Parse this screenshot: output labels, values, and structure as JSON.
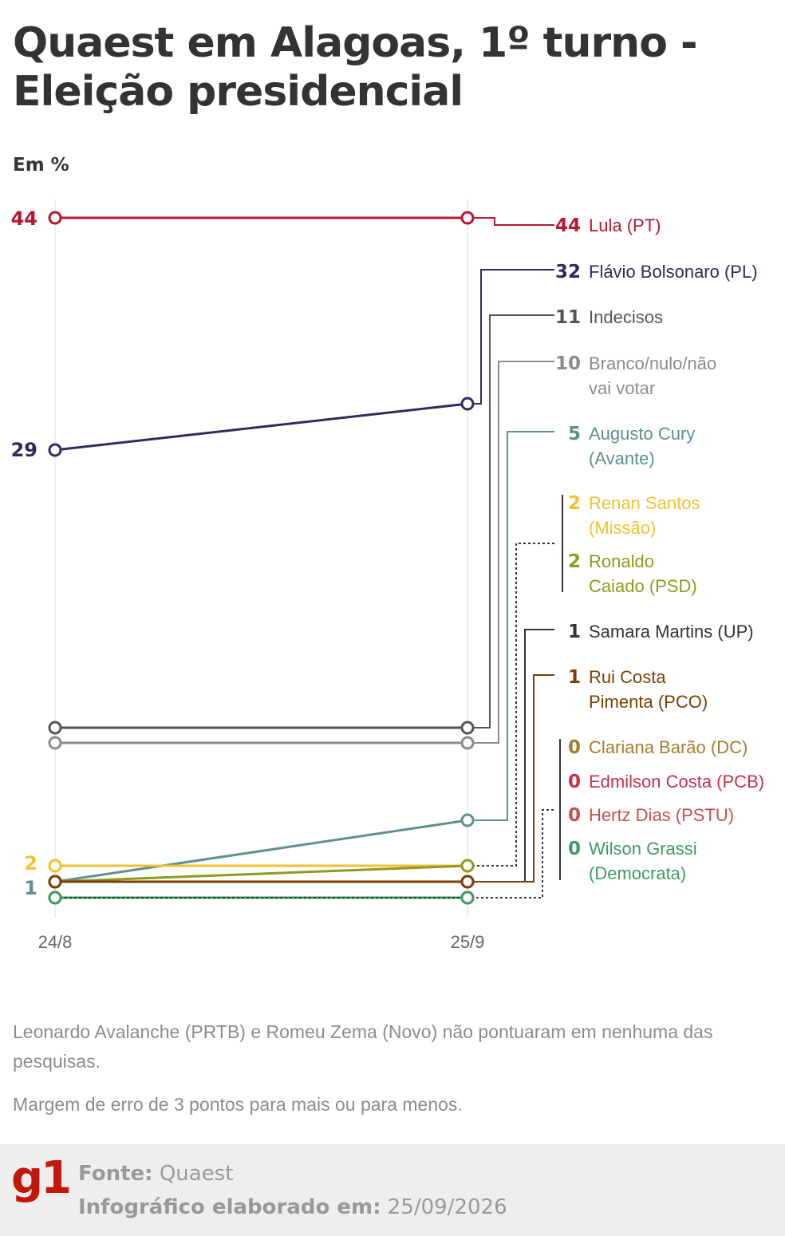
{
  "title": "Quaest em Alagoas, 1º turno - Eleição presidencial",
  "unit_label": "Em %",
  "chart_data": {
    "type": "line",
    "x": [
      "24/8",
      "25/9"
    ],
    "ylim": [
      0,
      46
    ],
    "grid": "vertical lines at each survey date",
    "series": [
      {
        "name": "Lula (PT)",
        "label": [
          "Lula (PT)"
        ],
        "values": [
          44,
          44
        ],
        "color": "#b5172f",
        "end_value": "44",
        "start_value_label": "44"
      },
      {
        "name": "Flávio Bolsonaro (PL)",
        "label": [
          "Flávio Bolsonaro (PL)"
        ],
        "values": [
          29,
          32
        ],
        "color": "#2c2c5e",
        "end_value": "32",
        "start_value_label": "29"
      },
      {
        "name": "Indecisos",
        "label": [
          "Indecisos"
        ],
        "values": [
          11,
          11
        ],
        "color": "#555555",
        "end_value": "11",
        "start_value_label": ""
      },
      {
        "name": "Branco/nulo/não vai votar",
        "label": [
          "Branco/nulo/não",
          "vai votar"
        ],
        "values": [
          10,
          10
        ],
        "color": "#8c8c8c",
        "end_value": "10",
        "start_value_label": ""
      },
      {
        "name": "Augusto Cury (Avante)",
        "label": [
          "Augusto Cury",
          "(Avante)"
        ],
        "values": [
          1,
          5
        ],
        "color": "#5f8f8f",
        "end_value": "5",
        "start_value_label": "1"
      },
      {
        "name": "Renan Santos (Missão)",
        "label": [
          "Renan Santos",
          "(Missão)"
        ],
        "values": [
          2,
          2
        ],
        "color": "#f0c233",
        "end_value": "2",
        "start_value_label": "2"
      },
      {
        "name": "Ronaldo Caiado (PSD)",
        "label": [
          "Ronaldo",
          "Caiado (PSD)"
        ],
        "values": [
          1,
          2
        ],
        "color": "#8e9b1e",
        "end_value": "2",
        "start_value_label": ""
      },
      {
        "name": "Samara Martins (UP)",
        "label": [
          "Samara Martins (UP)"
        ],
        "values": [
          1,
          1
        ],
        "color": "#333333",
        "end_value": "1",
        "start_value_label": ""
      },
      {
        "name": "Rui Costa Pimenta (PCO)",
        "label": [
          "Rui Costa",
          "Pimenta (PCO)"
        ],
        "values": [
          1,
          1
        ],
        "color": "#7a3f08",
        "end_value": "1",
        "start_value_label": ""
      },
      {
        "name": "Clariana Barão (DC)",
        "label": [
          "Clariana Barão (DC)"
        ],
        "values": [
          0,
          0
        ],
        "color": "#a87c2e",
        "end_value": "0",
        "start_value_label": ""
      },
      {
        "name": "Edmilson Costa (PCB)",
        "label": [
          "Edmilson Costa (PCB)"
        ],
        "values": [
          0,
          0
        ],
        "color": "#c8324a",
        "end_value": "0",
        "start_value_label": ""
      },
      {
        "name": "Hertz Dias (PSTU)",
        "label": [
          "Hertz Dias (PSTU)"
        ],
        "values": [
          0,
          0
        ],
        "color": "#c9504f",
        "end_value": "0",
        "start_value_label": ""
      },
      {
        "name": "Wilson Grassi (Democrata)",
        "label": [
          "Wilson Grassi",
          "(Democrata)"
        ],
        "values": [
          0,
          0
        ],
        "color": "#3f9b63",
        "end_value": "0",
        "start_value_label": ""
      }
    ]
  },
  "notes": [
    "Leonardo Avalanche (PRTB) e Romeu Zema (Novo) não pontuaram em nenhuma das pesquisas.",
    "Margem de erro de 3 pontos para mais ou para menos."
  ],
  "footer": {
    "logo": "g1",
    "source_label": "Fonte:",
    "source_value": "Quaest",
    "date_label": "Infográfico elaborado em:",
    "date_value": "25/09/2026",
    "brand_color": "#c4170c"
  }
}
